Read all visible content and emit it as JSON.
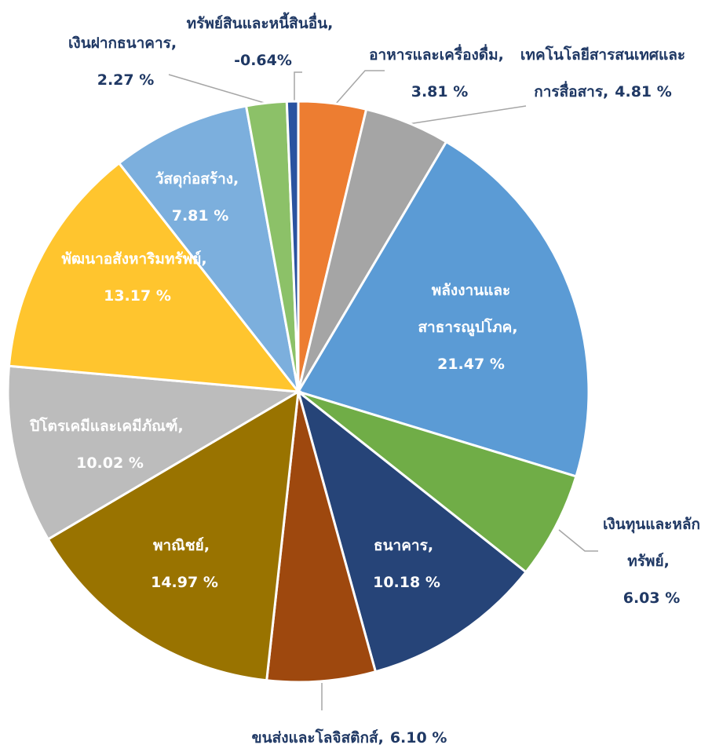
{
  "chart_data": {
    "type": "pie",
    "categories": [
      "อาหารและเครื่องดื่ม",
      "เทคโนโลยีสารสนเทศและการสื่อสาร",
      "พลังงานและสาธารณูปโภค",
      "เงินทุนและหลักทรัพย์",
      "ธนาคาร",
      "ขนส่งและโลจิสติกส์",
      "พาณิชย์",
      "ปิโตรเคมีและเคมีภัณฑ์",
      "พัฒนาอสังหาริมทรัพย์",
      "วัสดุก่อสร้าง",
      "เงินฝากธนาคาร",
      "ทรัพย์สินและหนี้สินอื่น"
    ],
    "values": [
      3.81,
      4.81,
      21.47,
      6.03,
      10.18,
      6.1,
      14.97,
      10.02,
      13.17,
      7.81,
      2.27,
      -0.64
    ],
    "value_labels": [
      "3.81 %",
      "4.81 %",
      "21.47 %",
      "6.03 %",
      "10.18 %",
      "6.10 %",
      "14.97 %",
      "10.02 %",
      "13.17 %",
      "7.81 %",
      "2.27 %",
      "-0.64%"
    ],
    "label_separator": ",",
    "colors": [
      "#ed7d31",
      "#a5a5a5",
      "#5b9bd5",
      "#70ad47",
      "#264478",
      "#9e480e",
      "#997300",
      "#bcbcbc",
      "#ffc52e",
      "#7cafdd",
      "#8cc168",
      "#2a53a0"
    ]
  }
}
